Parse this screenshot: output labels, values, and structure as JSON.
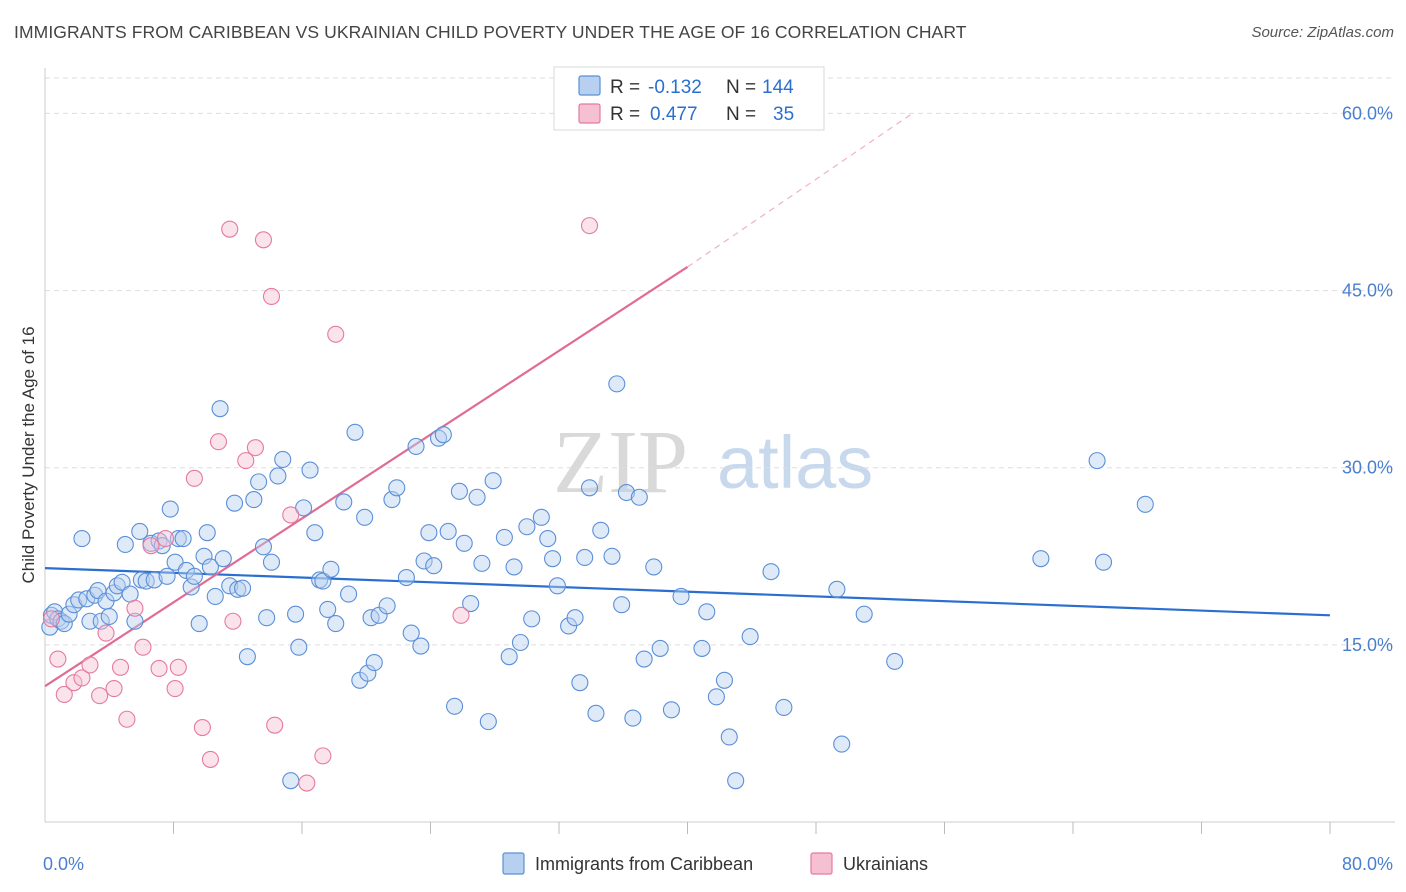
{
  "header": {
    "title": "IMMIGRANTS FROM CARIBBEAN VS UKRAINIAN CHILD POVERTY UNDER THE AGE OF 16 CORRELATION CHART",
    "source": "Source: ZipAtlas.com"
  },
  "watermark": {
    "zip": "ZIP",
    "atlas": "atlas"
  },
  "colors": {
    "blue": "#5b8fd8",
    "blue_fill": "#b8d0f0",
    "blue_line": "#2a6fd0",
    "pink": "#e57aa0",
    "pink_fill": "#f5c0d2",
    "pink_line": "#e06c95",
    "tick_text": "#4a7fd0",
    "grid": "#dddddd"
  },
  "legend": {
    "rows": [
      {
        "r_label": "R = ",
        "r_value": "-0.132",
        "n_label": "N = ",
        "n_value": "144"
      },
      {
        "r_label": "R = ",
        "r_value": "0.477",
        "n_label": "N = ",
        "n_value": "35"
      }
    ]
  },
  "chart_data": {
    "type": "scatter",
    "title": "IMMIGRANTS FROM CARIBBEAN VS UKRAINIAN CHILD POVERTY UNDER THE AGE OF 16 CORRELATION CHART",
    "xlabel": "",
    "ylabel": "Child Poverty Under the Age of 16",
    "xlim": [
      0,
      80
    ],
    "ylim": [
      0,
      63
    ],
    "x_tick_labels": [
      "0.0%",
      "80.0%"
    ],
    "y_ticks": [
      15,
      30,
      45,
      60
    ],
    "y_tick_labels": [
      "15.0%",
      "30.0%",
      "45.0%",
      "60.0%"
    ],
    "grid": true,
    "legend_position": "top-center and bottom",
    "series": [
      {
        "name": "Immigrants from Caribbean",
        "color": "#5b8fd8",
        "trend": {
          "x0": 0,
          "y0": 21.5,
          "x1": 80,
          "y1": 17.5
        },
        "points": [
          [
            0.3,
            16.5
          ],
          [
            0.4,
            17.5
          ],
          [
            0.6,
            17.8
          ],
          [
            0.8,
            17.2
          ],
          [
            1.0,
            17.0
          ],
          [
            1.2,
            16.8
          ],
          [
            1.5,
            17.6
          ],
          [
            1.8,
            18.4
          ],
          [
            2.1,
            18.8
          ],
          [
            2.3,
            24.0
          ],
          [
            2.6,
            18.9
          ],
          [
            2.8,
            17.0
          ],
          [
            3.1,
            19.2
          ],
          [
            3.3,
            19.6
          ],
          [
            3.5,
            17.0
          ],
          [
            3.8,
            18.7
          ],
          [
            4.0,
            17.4
          ],
          [
            4.3,
            19.4
          ],
          [
            4.5,
            20.0
          ],
          [
            4.8,
            20.3
          ],
          [
            5.0,
            23.5
          ],
          [
            5.3,
            19.3
          ],
          [
            5.6,
            17.0
          ],
          [
            5.9,
            24.6
          ],
          [
            6.0,
            20.5
          ],
          [
            6.3,
            20.4
          ],
          [
            6.6,
            23.6
          ],
          [
            6.8,
            20.5
          ],
          [
            7.1,
            23.8
          ],
          [
            7.3,
            23.4
          ],
          [
            7.6,
            20.8
          ],
          [
            7.8,
            26.5
          ],
          [
            8.1,
            22.0
          ],
          [
            8.3,
            24.0
          ],
          [
            8.6,
            24.0
          ],
          [
            8.8,
            21.3
          ],
          [
            9.1,
            19.9
          ],
          [
            9.3,
            20.8
          ],
          [
            9.6,
            16.8
          ],
          [
            9.9,
            22.5
          ],
          [
            10.1,
            24.5
          ],
          [
            10.3,
            21.6
          ],
          [
            10.6,
            19.1
          ],
          [
            10.9,
            35.0
          ],
          [
            11.1,
            22.3
          ],
          [
            11.5,
            20.0
          ],
          [
            11.8,
            27.0
          ],
          [
            12.0,
            19.7
          ],
          [
            12.3,
            19.8
          ],
          [
            12.6,
            14.0
          ],
          [
            13.0,
            27.3
          ],
          [
            13.3,
            28.8
          ],
          [
            13.6,
            23.3
          ],
          [
            13.8,
            17.3
          ],
          [
            14.1,
            22.0
          ],
          [
            14.5,
            29.3
          ],
          [
            14.8,
            30.7
          ],
          [
            15.3,
            3.5
          ],
          [
            15.6,
            17.6
          ],
          [
            15.8,
            14.8
          ],
          [
            16.1,
            26.6
          ],
          [
            16.5,
            29.8
          ],
          [
            16.8,
            24.5
          ],
          [
            17.1,
            20.5
          ],
          [
            17.3,
            20.4
          ],
          [
            17.6,
            18.0
          ],
          [
            17.8,
            21.4
          ],
          [
            18.1,
            16.8
          ],
          [
            18.6,
            27.1
          ],
          [
            18.9,
            19.3
          ],
          [
            19.3,
            33.0
          ],
          [
            19.6,
            12.0
          ],
          [
            19.9,
            25.8
          ],
          [
            20.1,
            12.6
          ],
          [
            20.3,
            17.3
          ],
          [
            20.5,
            13.5
          ],
          [
            20.8,
            17.5
          ],
          [
            21.3,
            18.3
          ],
          [
            21.6,
            27.3
          ],
          [
            21.9,
            28.3
          ],
          [
            22.5,
            20.7
          ],
          [
            22.8,
            16.0
          ],
          [
            23.1,
            31.8
          ],
          [
            23.4,
            14.9
          ],
          [
            23.6,
            22.1
          ],
          [
            23.9,
            24.5
          ],
          [
            24.2,
            21.7
          ],
          [
            24.5,
            32.5
          ],
          [
            24.8,
            32.8
          ],
          [
            25.1,
            24.6
          ],
          [
            25.5,
            9.8
          ],
          [
            25.8,
            28.0
          ],
          [
            26.1,
            23.6
          ],
          [
            26.5,
            18.5
          ],
          [
            26.9,
            27.5
          ],
          [
            27.2,
            21.9
          ],
          [
            27.6,
            8.5
          ],
          [
            27.9,
            28.9
          ],
          [
            28.6,
            24.1
          ],
          [
            28.9,
            14.0
          ],
          [
            29.2,
            21.6
          ],
          [
            29.6,
            15.2
          ],
          [
            30.0,
            25.0
          ],
          [
            30.3,
            17.2
          ],
          [
            30.9,
            25.8
          ],
          [
            31.3,
            24.0
          ],
          [
            31.6,
            22.3
          ],
          [
            31.9,
            20.0
          ],
          [
            32.6,
            16.6
          ],
          [
            33.0,
            17.3
          ],
          [
            33.3,
            11.8
          ],
          [
            33.6,
            22.4
          ],
          [
            33.9,
            28.3
          ],
          [
            34.3,
            9.2
          ],
          [
            34.6,
            24.7
          ],
          [
            35.3,
            22.5
          ],
          [
            35.6,
            37.1
          ],
          [
            35.9,
            18.4
          ],
          [
            36.2,
            27.9
          ],
          [
            36.6,
            8.8
          ],
          [
            37.0,
            27.5
          ],
          [
            37.3,
            13.8
          ],
          [
            37.9,
            21.6
          ],
          [
            38.3,
            14.7
          ],
          [
            39.0,
            9.5
          ],
          [
            39.6,
            19.1
          ],
          [
            40.9,
            14.7
          ],
          [
            41.2,
            17.8
          ],
          [
            41.8,
            10.6
          ],
          [
            42.3,
            12.0
          ],
          [
            42.6,
            7.2
          ],
          [
            43.0,
            3.5
          ],
          [
            43.9,
            15.7
          ],
          [
            45.2,
            21.2
          ],
          [
            46.0,
            9.7
          ],
          [
            49.3,
            19.7
          ],
          [
            49.6,
            6.6
          ],
          [
            51.0,
            17.6
          ],
          [
            52.9,
            13.6
          ],
          [
            62.0,
            22.3
          ],
          [
            65.5,
            30.6
          ],
          [
            65.9,
            22.0
          ],
          [
            68.5,
            26.9
          ]
        ]
      },
      {
        "name": "Ukrainians",
        "color": "#e57aa0",
        "trend": {
          "x0": 0,
          "y0": 11.5,
          "x1": 40,
          "y1": 47.0,
          "dashed_to_x": 54,
          "dashed_to_y": 60.0
        },
        "points": [
          [
            0.4,
            17.2
          ],
          [
            0.8,
            13.8
          ],
          [
            1.2,
            10.8
          ],
          [
            1.8,
            11.8
          ],
          [
            2.3,
            12.2
          ],
          [
            2.8,
            13.3
          ],
          [
            3.4,
            10.7
          ],
          [
            3.8,
            16.0
          ],
          [
            4.3,
            11.3
          ],
          [
            4.7,
            13.1
          ],
          [
            5.1,
            8.7
          ],
          [
            5.6,
            18.1
          ],
          [
            6.1,
            14.8
          ],
          [
            6.6,
            23.4
          ],
          [
            7.1,
            13.0
          ],
          [
            7.5,
            24.0
          ],
          [
            8.1,
            11.3
          ],
          [
            8.3,
            13.1
          ],
          [
            9.3,
            29.1
          ],
          [
            9.8,
            8.0
          ],
          [
            10.3,
            5.3
          ],
          [
            10.8,
            32.2
          ],
          [
            11.5,
            50.2
          ],
          [
            11.7,
            17.0
          ],
          [
            12.5,
            30.6
          ],
          [
            13.6,
            49.3
          ],
          [
            13.1,
            31.7
          ],
          [
            14.1,
            44.5
          ],
          [
            14.3,
            8.2
          ],
          [
            15.3,
            26.0
          ],
          [
            16.3,
            3.3
          ],
          [
            17.3,
            5.6
          ],
          [
            18.1,
            41.3
          ],
          [
            25.9,
            17.5
          ],
          [
            33.9,
            50.5
          ]
        ]
      }
    ]
  },
  "bottom_legend": {
    "items": [
      {
        "label": "Immigrants from Caribbean"
      },
      {
        "label": "Ukrainians"
      }
    ]
  }
}
